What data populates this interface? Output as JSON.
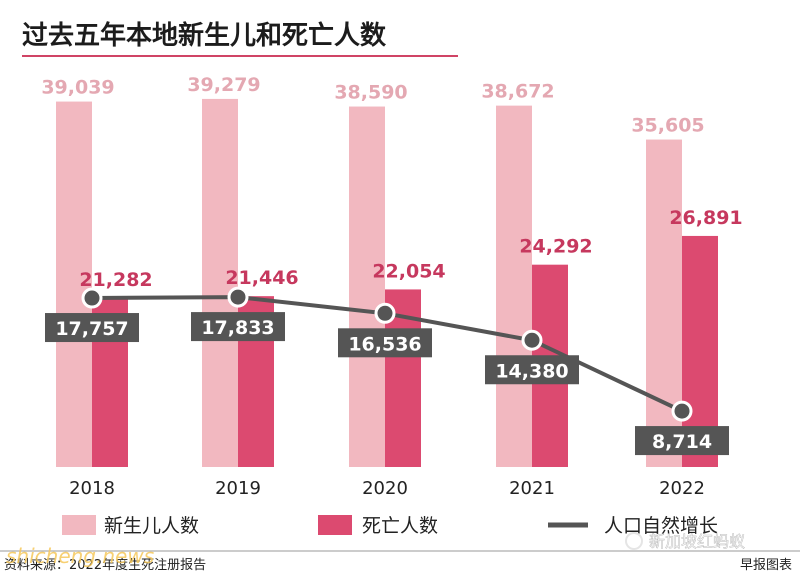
{
  "title": "过去五年本地新生儿和死亡人数",
  "source": "资料来源：2022年度生死注册报告",
  "credit": "早报图表",
  "watermarks": [
    "shicheng.news",
    "新加坡红蚂蚁"
  ],
  "colors": {
    "births": "#f2b8c0",
    "deaths": "#dc4a70",
    "natural_increase": "#555555",
    "births_label": "#e4a8b2",
    "deaths_label": "#c6385e",
    "title_rule": "#d04465"
  },
  "chart_data": {
    "type": "bar",
    "title": "过去五年本地新生儿和死亡人数",
    "categories": [
      "2018",
      "2019",
      "2020",
      "2021",
      "2022"
    ],
    "series": [
      {
        "name": "新生儿人数",
        "type": "bar",
        "values": [
          39039,
          39279,
          38590,
          38672,
          35605
        ],
        "labels": [
          "39,039",
          "39,279",
          "38,590",
          "38,672",
          "35,605"
        ]
      },
      {
        "name": "死亡人数",
        "type": "bar",
        "values": [
          21282,
          21446,
          22054,
          24292,
          26891
        ],
        "labels": [
          "21,282",
          "21,446",
          "22,054",
          "24,292",
          "26,891"
        ]
      },
      {
        "name": "人口自然增长",
        "type": "line",
        "values": [
          17757,
          17833,
          16536,
          14380,
          8714
        ],
        "labels": [
          "17,757",
          "17,833",
          "16,536",
          "14,380",
          "8,714"
        ]
      }
    ],
    "xlabel": "",
    "ylabel": "",
    "legend_position": "bottom",
    "grid": false
  }
}
